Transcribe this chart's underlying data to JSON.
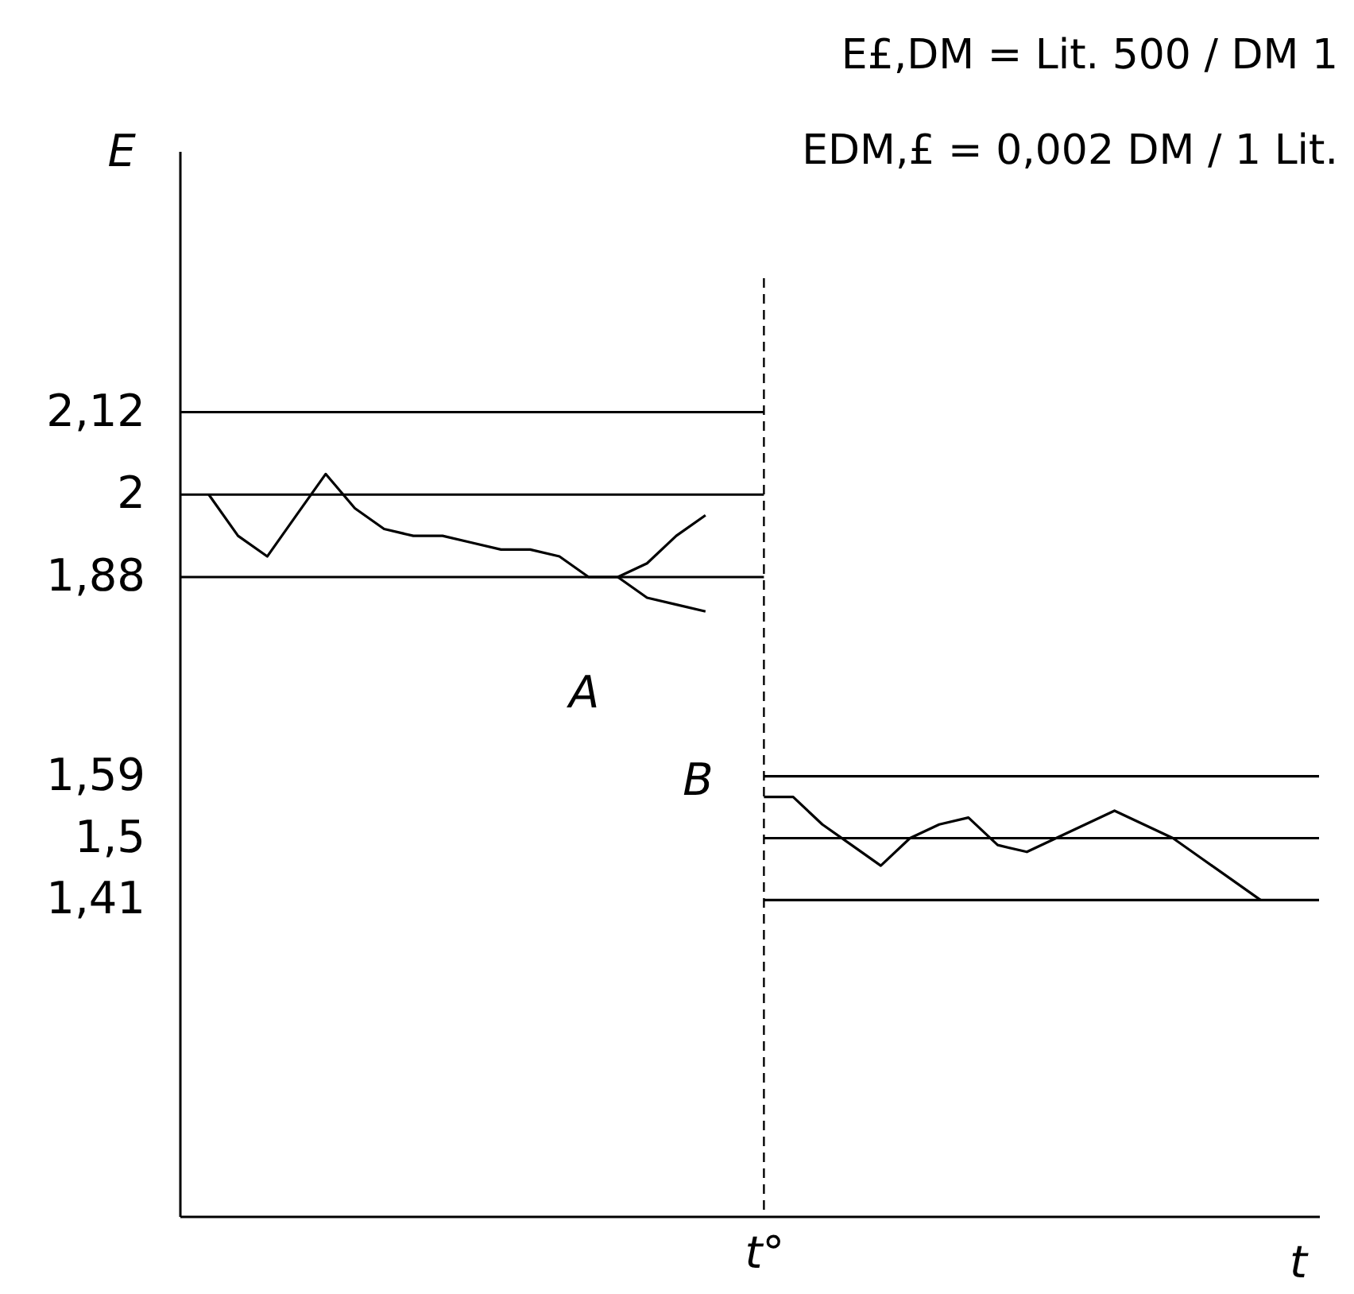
{
  "chart_data": {
    "type": "line",
    "ylabel": "E",
    "xlabel": "t",
    "categories": [
      null,
      null,
      null,
      null,
      null,
      null,
      null,
      null,
      null,
      null,
      null,
      null,
      null,
      null,
      null,
      null,
      null,
      null,
      null,
      null,
      "t°",
      null,
      null,
      null,
      null,
      null,
      null,
      null,
      null,
      null,
      null,
      null,
      null,
      null,
      null,
      null,
      null,
      null,
      null,
      null
    ],
    "ylim": [
      0.95,
      2.5
    ],
    "yticks": [
      {
        "value": 2.12,
        "label": "2,12"
      },
      {
        "value": 2,
        "label": "2"
      },
      {
        "value": 1.88,
        "label": "1,88"
      },
      {
        "value": 1.59,
        "label": "1,59"
      },
      {
        "value": 1.5,
        "label": "1,5"
      },
      {
        "value": 1.41,
        "label": "1,41"
      }
    ],
    "marker": "none",
    "line_style": "solid",
    "series": [
      {
        "color": "#000000",
        "values": [
          2.12,
          2.12,
          2.12,
          2.12,
          2.12,
          2.12,
          2.12,
          2.12,
          2.12,
          2.12,
          2.12,
          2.12,
          2.12,
          2.12,
          2.12,
          2.12,
          2.12,
          2.12,
          2.12,
          2.12,
          2.12,
          null,
          null,
          null,
          null,
          null,
          null,
          null,
          null,
          null,
          null,
          null,
          null,
          null,
          null,
          null,
          null,
          null,
          null,
          null
        ]
      },
      {
        "color": "#000000",
        "values": [
          2,
          2,
          2,
          2,
          2,
          2,
          2,
          2,
          2,
          2,
          2,
          2,
          2,
          2,
          2,
          2,
          2,
          2,
          2,
          2,
          2,
          null,
          null,
          null,
          null,
          null,
          null,
          null,
          null,
          null,
          null,
          null,
          null,
          null,
          null,
          null,
          null,
          null,
          null,
          null
        ]
      },
      {
        "color": "#000000",
        "values": [
          1.88,
          1.88,
          1.88,
          1.88,
          1.88,
          1.88,
          1.88,
          1.88,
          1.88,
          1.88,
          1.88,
          1.88,
          1.88,
          1.88,
          1.88,
          1.88,
          1.88,
          1.88,
          1.88,
          1.88,
          1.88,
          null,
          null,
          null,
          null,
          null,
          null,
          null,
          null,
          null,
          null,
          null,
          null,
          null,
          null,
          null,
          null,
          null,
          null,
          null
        ]
      },
      {
        "color": "#000000",
        "values": [
          null,
          null,
          null,
          null,
          null,
          null,
          null,
          null,
          null,
          null,
          null,
          null,
          null,
          null,
          null,
          null,
          null,
          null,
          null,
          null,
          1.59,
          1.59,
          1.59,
          1.59,
          1.59,
          1.59,
          1.59,
          1.59,
          1.59,
          1.59,
          1.59,
          1.59,
          1.59,
          1.59,
          1.59,
          1.59,
          1.59,
          1.59,
          1.59,
          1.59
        ]
      },
      {
        "color": "#000000",
        "values": [
          null,
          null,
          null,
          null,
          null,
          null,
          null,
          null,
          null,
          null,
          null,
          null,
          null,
          null,
          null,
          null,
          null,
          null,
          null,
          null,
          1.5,
          1.5,
          1.5,
          1.5,
          1.5,
          1.5,
          1.5,
          1.5,
          1.5,
          1.5,
          1.5,
          1.5,
          1.5,
          1.5,
          1.5,
          1.5,
          1.5,
          1.5,
          1.5,
          1.5
        ]
      },
      {
        "color": "#000000",
        "values": [
          null,
          null,
          null,
          null,
          null,
          null,
          null,
          null,
          null,
          null,
          null,
          null,
          null,
          null,
          null,
          null,
          null,
          null,
          null,
          null,
          1.41,
          1.41,
          1.41,
          1.41,
          1.41,
          1.41,
          1.41,
          1.41,
          1.41,
          1.41,
          1.41,
          1.41,
          1.41,
          1.41,
          1.41,
          1.41,
          1.41,
          1.41,
          1.41,
          1.41
        ]
      },
      {
        "color": "#000000",
        "values": [
          null,
          2.0,
          1.94,
          1.91,
          1.97,
          2.03,
          1.98,
          1.95,
          1.94,
          1.94,
          1.93,
          1.92,
          1.92,
          1.91,
          1.88,
          1.88,
          1.9,
          1.94,
          1.97,
          null,
          null,
          null,
          null,
          null,
          null,
          null,
          null,
          null,
          null,
          null,
          null,
          null,
          null,
          null,
          null,
          null,
          null,
          null,
          null,
          null
        ]
      },
      {
        "color": "#000000",
        "values": [
          null,
          null,
          null,
          null,
          null,
          null,
          null,
          null,
          null,
          null,
          null,
          null,
          null,
          null,
          null,
          1.88,
          1.85,
          1.84,
          1.83,
          null,
          null,
          null,
          null,
          null,
          null,
          null,
          null,
          null,
          null,
          null,
          null,
          null,
          null,
          null,
          null,
          null,
          null,
          null,
          null,
          null
        ]
      },
      {
        "color": "#000000",
        "values": [
          null,
          null,
          null,
          null,
          null,
          null,
          null,
          null,
          null,
          null,
          null,
          null,
          null,
          null,
          null,
          null,
          null,
          null,
          null,
          null,
          1.56,
          1.56,
          1.52,
          1.49,
          1.46,
          1.5,
          1.52,
          1.53,
          1.49,
          1.48,
          1.5,
          1.52,
          1.54,
          1.52,
          1.5,
          1.47,
          1.44,
          1.41,
          null,
          null
        ]
      }
    ],
    "ref_lines": [
      {
        "axis": "x",
        "value": "t°",
        "line_style": "dashed",
        "color": "#000000"
      }
    ],
    "annotations": [
      "A",
      "B",
      "E£,DM = Lit. 500 / DM 1",
      "EDM,£ = 0,002 DM / 1 Lit."
    ]
  }
}
